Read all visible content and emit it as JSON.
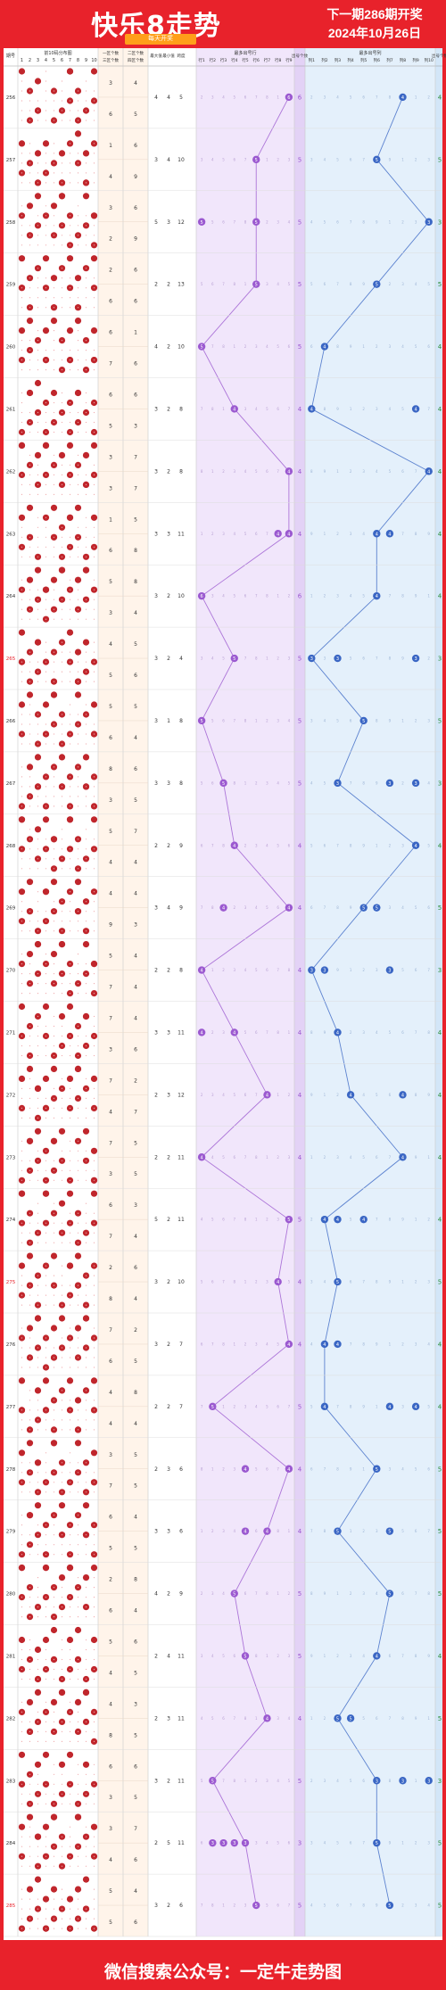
{
  "header": {
    "title": "快乐8走势图",
    "next_issue": "下一期286期开奖",
    "draw_date": "2024年10月26日",
    "sub_label": "每天开奖"
  },
  "footer": {
    "text": "微信搜索公众号：一定牛走势图"
  },
  "colors": {
    "red": "#e8222b",
    "ball": "#c0262c",
    "purple": "#9b59d0",
    "blue": "#3a66c4",
    "orange": "#ff9f1a"
  },
  "chart_data": {
    "type": "table",
    "columns": {
      "issue": "期号",
      "dist": "前10码分布图",
      "dist_ticks": [
        "1",
        "2",
        "3",
        "4",
        "5",
        "6",
        "7",
        "8",
        "9",
        "10"
      ],
      "g1": "一区个数",
      "g3": "三区个数",
      "g2": "二区个数",
      "g4": "四区个数",
      "s_big": "最大值",
      "s_small": "最小值",
      "s_span": "跨度",
      "pos": "最多出号行",
      "pos_ticks": [
        "行1",
        "行2",
        "行3",
        "行4",
        "行5",
        "行6",
        "行7",
        "行8",
        "行9"
      ],
      "out1": "出号个数",
      "col": "最多出号列",
      "col_ticks": [
        "列1",
        "列2",
        "列3",
        "列4",
        "列5",
        "列6",
        "列7",
        "列8",
        "列9",
        "列10"
      ],
      "out2": "出号个数"
    },
    "rows": [
      {
        "issue": "256",
        "hl": false,
        "g1": 3,
        "g3": 6,
        "g2": 4,
        "g4": 5,
        "s": [
          4,
          4,
          5
        ],
        "pos": [
          9
        ],
        "rc": 6,
        "col": [
          8
        ],
        "cc": 4,
        "balls": [
          1,
          2,
          3,
          0,
          2,
          1,
          3,
          2,
          1,
          2
        ]
      },
      {
        "issue": "257",
        "hl": false,
        "g1": 1,
        "g3": 4,
        "g2": 6,
        "g4": 9,
        "s": [
          3,
          4,
          10
        ],
        "pos": [
          6
        ],
        "rc": 5,
        "col": [
          6
        ],
        "cc": 5,
        "balls": [
          2,
          1,
          3,
          2,
          1,
          3,
          1,
          2,
          3,
          1
        ]
      },
      {
        "issue": "258",
        "hl": false,
        "g1": 3,
        "g3": 2,
        "g2": 6,
        "g4": 9,
        "s": [
          5,
          3,
          12
        ],
        "pos": [
          1,
          6
        ],
        "rc": 5,
        "col": [
          10
        ],
        "cc": 3,
        "balls": [
          1,
          3,
          2,
          1,
          2,
          3,
          2,
          1,
          2,
          3
        ]
      },
      {
        "issue": "259",
        "hl": false,
        "g1": 2,
        "g3": 6,
        "g2": 6,
        "g4": 6,
        "s": [
          2,
          2,
          13
        ],
        "pos": [
          6
        ],
        "rc": 5,
        "col": [
          6
        ],
        "cc": 5,
        "balls": [
          3,
          2,
          1,
          2,
          3,
          1,
          2,
          3,
          1,
          2
        ]
      },
      {
        "issue": "260",
        "hl": false,
        "g1": 6,
        "g3": 7,
        "g2": 1,
        "g4": 6,
        "s": [
          4,
          2,
          10
        ],
        "pos": [
          1
        ],
        "rc": 5,
        "col": [
          2
        ],
        "cc": 4,
        "balls": [
          2,
          2,
          1,
          3,
          1,
          2,
          3,
          1,
          2,
          3
        ]
      },
      {
        "issue": "261",
        "hl": false,
        "g1": 6,
        "g3": 5,
        "g2": 6,
        "g4": 3,
        "s": [
          3,
          2,
          8
        ],
        "pos": [
          4
        ],
        "rc": 4,
        "col": [
          1,
          9
        ],
        "cc": 4,
        "balls": [
          1,
          3,
          3,
          2,
          2,
          1,
          2,
          3,
          1,
          2
        ]
      },
      {
        "issue": "262",
        "hl": false,
        "g1": 3,
        "g3": 3,
        "g2": 7,
        "g4": 7,
        "s": [
          3,
          2,
          8
        ],
        "pos": [
          9
        ],
        "rc": 4,
        "col": [
          10
        ],
        "cc": 4,
        "balls": [
          3,
          1,
          2,
          3,
          1,
          2,
          2,
          1,
          3,
          2
        ]
      },
      {
        "issue": "263",
        "hl": false,
        "g1": 1,
        "g3": 6,
        "g2": 5,
        "g4": 8,
        "s": [
          3,
          3,
          11
        ],
        "pos": [
          8,
          9
        ],
        "rc": 4,
        "col": [
          6,
          7
        ],
        "cc": 4,
        "balls": [
          2,
          3,
          1,
          1,
          3,
          2,
          3,
          2,
          1,
          2
        ]
      },
      {
        "issue": "264",
        "hl": false,
        "g1": 5,
        "g3": 3,
        "g2": 8,
        "g4": 4,
        "s": [
          3,
          2,
          10
        ],
        "pos": [
          1
        ],
        "rc": 6,
        "col": [
          6
        ],
        "cc": 4,
        "balls": [
          1,
          2,
          2,
          3,
          2,
          3,
          1,
          2,
          3,
          1
        ]
      },
      {
        "issue": "265",
        "hl": true,
        "g1": 4,
        "g3": 5,
        "g2": 5,
        "g4": 6,
        "s": [
          3,
          2,
          4
        ],
        "pos": [
          4
        ],
        "rc": 5,
        "col": [
          1,
          3,
          9
        ],
        "cc": 3,
        "balls": [
          3,
          2,
          3,
          1,
          2,
          1,
          2,
          3,
          2,
          1
        ]
      },
      {
        "issue": "266",
        "hl": false,
        "g1": 5,
        "g3": 6,
        "g2": 5,
        "g4": 4,
        "s": [
          3,
          1,
          8
        ],
        "pos": [
          1
        ],
        "rc": 5,
        "col": [
          5
        ],
        "cc": 5,
        "balls": [
          2,
          1,
          2,
          3,
          3,
          2,
          1,
          2,
          1,
          3
        ]
      },
      {
        "issue": "267",
        "hl": false,
        "g1": 8,
        "g3": 3,
        "g2": 6,
        "g4": 5,
        "s": [
          3,
          3,
          8
        ],
        "pos": [
          3
        ],
        "rc": 5,
        "col": [
          3,
          7,
          9
        ],
        "cc": 3,
        "balls": [
          1,
          2,
          3,
          2,
          1,
          3,
          2,
          1,
          3,
          2
        ]
      },
      {
        "issue": "268",
        "hl": false,
        "g1": 5,
        "g3": 4,
        "g2": 7,
        "g4": 4,
        "s": [
          2,
          2,
          9
        ],
        "pos": [
          4
        ],
        "rc": 4,
        "col": [
          9
        ],
        "cc": 4,
        "balls": [
          3,
          1,
          2,
          2,
          3,
          1,
          3,
          2,
          1,
          2
        ]
      },
      {
        "issue": "269",
        "hl": false,
        "g1": 4,
        "g3": 9,
        "g2": 4,
        "g4": 3,
        "s": [
          3,
          4,
          9
        ],
        "pos": [
          3,
          9
        ],
        "rc": 4,
        "col": [
          5,
          6
        ],
        "cc": 5,
        "balls": [
          2,
          3,
          1,
          3,
          2,
          2,
          1,
          3,
          2,
          1
        ]
      },
      {
        "issue": "270",
        "hl": false,
        "g1": 5,
        "g3": 7,
        "g2": 4,
        "g4": 4,
        "s": [
          2,
          2,
          8
        ],
        "pos": [
          1
        ],
        "rc": 4,
        "col": [
          1,
          2,
          7
        ],
        "cc": 3,
        "balls": [
          1,
          2,
          3,
          1,
          2,
          3,
          2,
          1,
          2,
          3
        ]
      },
      {
        "issue": "271",
        "hl": false,
        "g1": 7,
        "g3": 3,
        "g2": 4,
        "g4": 6,
        "s": [
          3,
          3,
          11
        ],
        "pos": [
          1,
          4
        ],
        "rc": 4,
        "col": [
          3
        ],
        "cc": 4,
        "balls": [
          3,
          2,
          1,
          2,
          1,
          2,
          3,
          2,
          3,
          1
        ]
      },
      {
        "issue": "272",
        "hl": false,
        "g1": 7,
        "g3": 4,
        "g2": 2,
        "g4": 7,
        "s": [
          2,
          3,
          12
        ],
        "pos": [
          7
        ],
        "rc": 4,
        "col": [
          4,
          8
        ],
        "cc": 4,
        "balls": [
          2,
          1,
          3,
          3,
          2,
          1,
          2,
          3,
          1,
          2
        ]
      },
      {
        "issue": "273",
        "hl": false,
        "g1": 7,
        "g3": 3,
        "g2": 5,
        "g4": 5,
        "s": [
          2,
          2,
          11
        ],
        "pos": [
          1
        ],
        "rc": 4,
        "col": [
          8
        ],
        "cc": 4,
        "balls": [
          1,
          3,
          2,
          2,
          3,
          2,
          1,
          1,
          2,
          3
        ]
      },
      {
        "issue": "274",
        "hl": false,
        "g1": 6,
        "g3": 7,
        "g2": 3,
        "g4": 4,
        "s": [
          5,
          2,
          11
        ],
        "pos": [
          9
        ],
        "rc": 5,
        "col": [
          2,
          3,
          5
        ],
        "cc": 4,
        "balls": [
          3,
          2,
          1,
          3,
          1,
          3,
          2,
          2,
          1,
          2
        ]
      },
      {
        "issue": "275",
        "hl": true,
        "g1": 2,
        "g3": 8,
        "g2": 6,
        "g4": 4,
        "s": [
          3,
          2,
          10
        ],
        "pos": [
          8
        ],
        "rc": 4,
        "col": [
          3
        ],
        "cc": 5,
        "balls": [
          2,
          3,
          2,
          1,
          2,
          1,
          3,
          3,
          2,
          1
        ]
      },
      {
        "issue": "276",
        "hl": false,
        "g1": 7,
        "g3": 6,
        "g2": 2,
        "g4": 5,
        "s": [
          3,
          2,
          7
        ],
        "pos": [
          9
        ],
        "rc": 4,
        "col": [
          2,
          3
        ],
        "cc": 4,
        "balls": [
          1,
          2,
          3,
          2,
          3,
          2,
          1,
          2,
          3,
          1
        ]
      },
      {
        "issue": "277",
        "hl": false,
        "g1": 4,
        "g3": 4,
        "g2": 8,
        "g4": 4,
        "s": [
          2,
          2,
          7
        ],
        "pos": [
          2
        ],
        "rc": 5,
        "col": [
          2,
          7,
          9
        ],
        "cc": 4,
        "balls": [
          3,
          1,
          2,
          3,
          2,
          1,
          2,
          3,
          1,
          2
        ]
      },
      {
        "issue": "278",
        "hl": false,
        "g1": 3,
        "g3": 7,
        "g2": 5,
        "g4": 5,
        "s": [
          2,
          3,
          6
        ],
        "pos": [
          5,
          9
        ],
        "rc": 4,
        "col": [
          6
        ],
        "cc": 5,
        "balls": [
          2,
          2,
          3,
          1,
          3,
          2,
          1,
          2,
          2,
          3
        ]
      },
      {
        "issue": "279",
        "hl": false,
        "g1": 6,
        "g3": 5,
        "g2": 4,
        "g4": 5,
        "s": [
          3,
          3,
          6
        ],
        "pos": [
          5,
          7
        ],
        "rc": 4,
        "col": [
          3,
          7
        ],
        "cc": 5,
        "balls": [
          1,
          3,
          2,
          2,
          1,
          3,
          2,
          1,
          3,
          2
        ]
      },
      {
        "issue": "280",
        "hl": false,
        "g1": 2,
        "g3": 6,
        "g2": 8,
        "g4": 4,
        "s": [
          4,
          2,
          9
        ],
        "pos": [
          4
        ],
        "rc": 5,
        "col": [
          7
        ],
        "cc": 5,
        "balls": [
          3,
          2,
          1,
          3,
          2,
          2,
          3,
          1,
          2,
          1
        ]
      },
      {
        "issue": "281",
        "hl": false,
        "g1": 5,
        "g3": 4,
        "g2": 6,
        "g4": 5,
        "s": [
          2,
          4,
          11
        ],
        "pos": [
          5
        ],
        "rc": 5,
        "col": [
          6
        ],
        "cc": 4,
        "balls": [
          2,
          1,
          3,
          2,
          3,
          1,
          2,
          3,
          1,
          2
        ]
      },
      {
        "issue": "282",
        "hl": false,
        "g1": 4,
        "g3": 8,
        "g2": 3,
        "g4": 5,
        "s": [
          2,
          3,
          11
        ],
        "pos": [
          7
        ],
        "rc": 4,
        "col": [
          3,
          4
        ],
        "cc": 5,
        "balls": [
          1,
          3,
          2,
          1,
          2,
          3,
          1,
          2,
          3,
          2
        ]
      },
      {
        "issue": "283",
        "hl": false,
        "g1": 6,
        "g3": 3,
        "g2": 6,
        "g4": 5,
        "s": [
          3,
          2,
          11
        ],
        "pos": [
          2
        ],
        "rc": 5,
        "col": [
          6,
          8,
          10
        ],
        "cc": 3,
        "balls": [
          3,
          2,
          2,
          3,
          1,
          2,
          3,
          1,
          2,
          1
        ]
      },
      {
        "issue": "284",
        "hl": false,
        "g1": 3,
        "g3": 4,
        "g2": 7,
        "g4": 6,
        "s": [
          2,
          5,
          11
        ],
        "pos": [
          2,
          3,
          4,
          5
        ],
        "rc": 3,
        "col": [
          6
        ],
        "cc": 5,
        "balls": [
          2,
          1,
          3,
          2,
          3,
          2,
          1,
          3,
          1,
          2
        ]
      },
      {
        "issue": "285",
        "hl": true,
        "g1": 5,
        "g3": 5,
        "g2": 4,
        "g4": 6,
        "s": [
          3,
          2,
          6
        ],
        "pos": [
          6
        ],
        "rc": 5,
        "col": [
          7
        ],
        "cc": 5,
        "balls": [
          1,
          2,
          2,
          3,
          2,
          1,
          3,
          2,
          3,
          1
        ]
      }
    ]
  }
}
